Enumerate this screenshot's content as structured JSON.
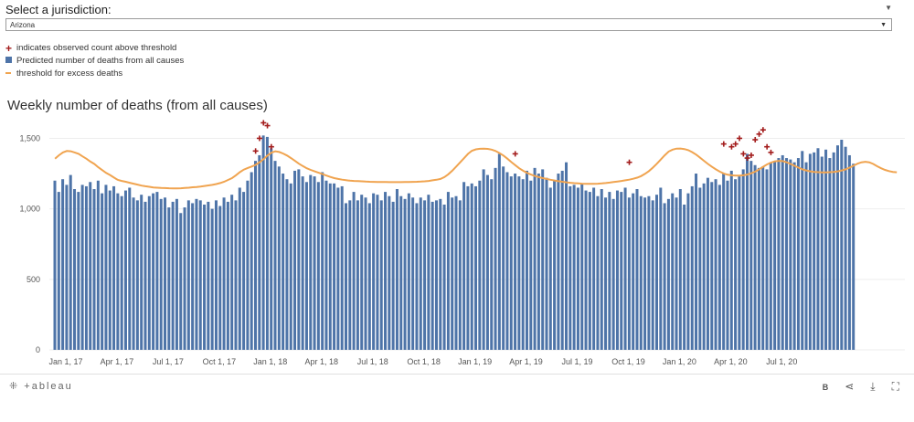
{
  "filter": {
    "label": "Select a jurisdiction:",
    "value": "Arizona"
  },
  "legend": [
    {
      "symbol": "+",
      "label": "indicates observed count above threshold"
    },
    {
      "symbol": "bar",
      "label": "Predicted number of deaths from all causes"
    },
    {
      "symbol": "line",
      "label": "threshold for excess deaths"
    }
  ],
  "chart_data": {
    "type": "bar",
    "title": "Weekly number of deaths (from all causes)",
    "xlabel": "",
    "ylabel": "",
    "ylim": [
      0,
      1600
    ],
    "yticks": [
      0,
      500,
      1000,
      1500
    ],
    "ytick_labels": [
      "0",
      "500",
      "1,000",
      "1,500"
    ],
    "xtick_labels": [
      "Jan 1, 17",
      "Apr 1, 17",
      "Jul 1, 17",
      "Oct 1, 17",
      "Jan 1, 18",
      "Apr 1, 18",
      "Jul 1, 18",
      "Oct 1, 18",
      "Jan 1, 19",
      "Apr 1, 19",
      "Jul 1, 19",
      "Oct 1, 19",
      "Jan 1, 20",
      "Apr 1, 20",
      "Jul 1, 20"
    ],
    "xtick_weeks": [
      0,
      13,
      26,
      39,
      52,
      65,
      78,
      91,
      104,
      117,
      130,
      143,
      156,
      169,
      182
    ],
    "colors": {
      "bar": "#4e74a8",
      "threshold": "#f0a450",
      "marker": "#a31c1c"
    },
    "predicted": [
      1200,
      1120,
      1210,
      1170,
      1240,
      1140,
      1120,
      1170,
      1160,
      1190,
      1140,
      1200,
      1110,
      1170,
      1130,
      1160,
      1110,
      1090,
      1130,
      1150,
      1080,
      1060,
      1100,
      1050,
      1090,
      1110,
      1120,
      1070,
      1080,
      1010,
      1050,
      1070,
      970,
      1010,
      1060,
      1040,
      1070,
      1060,
      1030,
      1050,
      1000,
      1060,
      1020,
      1080,
      1050,
      1100,
      1060,
      1150,
      1120,
      1200,
      1260,
      1340,
      1380,
      1520,
      1510,
      1430,
      1340,
      1300,
      1250,
      1210,
      1180,
      1270,
      1280,
      1230,
      1190,
      1240,
      1230,
      1190,
      1260,
      1200,
      1180,
      1180,
      1150,
      1160,
      1040,
      1060,
      1120,
      1060,
      1100,
      1080,
      1040,
      1110,
      1100,
      1060,
      1120,
      1090,
      1050,
      1140,
      1090,
      1070,
      1110,
      1080,
      1040,
      1080,
      1060,
      1100,
      1050,
      1060,
      1070,
      1030,
      1120,
      1080,
      1090,
      1060,
      1190,
      1160,
      1180,
      1160,
      1200,
      1280,
      1240,
      1210,
      1290,
      1390,
      1300,
      1260,
      1230,
      1250,
      1230,
      1210,
      1270,
      1200,
      1290,
      1250,
      1280,
      1220,
      1150,
      1200,
      1250,
      1270,
      1330,
      1160,
      1170,
      1150,
      1180,
      1130,
      1120,
      1150,
      1090,
      1140,
      1080,
      1120,
      1070,
      1130,
      1120,
      1150,
      1080,
      1110,
      1140,
      1090,
      1080,
      1090,
      1060,
      1100,
      1150,
      1040,
      1070,
      1110,
      1080,
      1140,
      1030,
      1110,
      1160,
      1250,
      1150,
      1180,
      1220,
      1190,
      1210,
      1170,
      1250,
      1200,
      1270,
      1210,
      1230,
      1280,
      1390,
      1340,
      1310,
      1290,
      1300,
      1280,
      1330,
      1340,
      1360,
      1380,
      1360,
      1350,
      1330,
      1360,
      1410,
      1330,
      1390,
      1400,
      1430,
      1370,
      1420,
      1360,
      1400,
      1450,
      1490,
      1440,
      1380,
      1320
    ],
    "threshold": [
      1355,
      1380,
      1400,
      1410,
      1408,
      1400,
      1390,
      1372,
      1355,
      1335,
      1318,
      1295,
      1275,
      1255,
      1240,
      1222,
      1205,
      1198,
      1192,
      1185,
      1178,
      1172,
      1165,
      1160,
      1156,
      1152,
      1150,
      1148,
      1147,
      1146,
      1145,
      1145,
      1146,
      1148,
      1150,
      1153,
      1155,
      1158,
      1162,
      1166,
      1170,
      1176,
      1183,
      1192,
      1205,
      1218,
      1238,
      1260,
      1278,
      1290,
      1300,
      1312,
      1330,
      1352,
      1378,
      1398,
      1408,
      1403,
      1392,
      1378,
      1360,
      1340,
      1320,
      1303,
      1288,
      1276,
      1266,
      1256,
      1246,
      1236,
      1226,
      1218,
      1212,
      1207,
      1203,
      1200,
      1198,
      1197,
      1195,
      1193,
      1192,
      1191,
      1190,
      1190,
      1190,
      1189,
      1189,
      1189,
      1189,
      1190,
      1190,
      1191,
      1192,
      1193,
      1195,
      1198,
      1202,
      1206,
      1212,
      1225,
      1245,
      1270,
      1300,
      1330,
      1360,
      1390,
      1412,
      1422,
      1426,
      1427,
      1425,
      1420,
      1410,
      1395,
      1378,
      1356,
      1332,
      1310,
      1288,
      1270,
      1255,
      1243,
      1233,
      1225,
      1218,
      1212,
      1206,
      1201,
      1196,
      1192,
      1188,
      1185,
      1182,
      1180,
      1178,
      1177,
      1177,
      1177,
      1178,
      1180,
      1183,
      1186,
      1190,
      1194,
      1198,
      1202,
      1207,
      1213,
      1221,
      1232,
      1248,
      1268,
      1292,
      1320,
      1350,
      1380,
      1406,
      1420,
      1427,
      1428,
      1424,
      1416,
      1402,
      1384,
      1362,
      1340,
      1318,
      1298,
      1280,
      1264,
      1251,
      1242,
      1238,
      1236,
      1236,
      1238,
      1243,
      1252,
      1264,
      1280,
      1298,
      1315,
      1328,
      1337,
      1340,
      1338,
      1330,
      1318,
      1305,
      1292,
      1280,
      1272,
      1266,
      1262,
      1260,
      1258,
      1258,
      1260,
      1262,
      1266,
      1272,
      1280,
      1292,
      1306,
      1320,
      1330,
      1334,
      1330,
      1318,
      1302,
      1288,
      1276,
      1268,
      1262,
      1259
    ],
    "observed_above": [
      {
        "week": 51,
        "value": 1410
      },
      {
        "week": 52,
        "value": 1500
      },
      {
        "week": 53,
        "value": 1610
      },
      {
        "week": 54,
        "value": 1590
      },
      {
        "week": 55,
        "value": 1440
      },
      {
        "week": 117,
        "value": 1390
      },
      {
        "week": 146,
        "value": 1330
      },
      {
        "week": 170,
        "value": 1460
      },
      {
        "week": 172,
        "value": 1440
      },
      {
        "week": 173,
        "value": 1460
      },
      {
        "week": 174,
        "value": 1500
      },
      {
        "week": 175,
        "value": 1390
      },
      {
        "week": 176,
        "value": 1360
      },
      {
        "week": 177,
        "value": 1380
      },
      {
        "week": 178,
        "value": 1490
      },
      {
        "week": 179,
        "value": 1530
      },
      {
        "week": 180,
        "value": 1560
      },
      {
        "week": 181,
        "value": 1440
      },
      {
        "week": 182,
        "value": 1400
      }
    ]
  },
  "footer": {
    "logo": "+ableau",
    "icons": [
      "b-icon",
      "share-icon",
      "download-icon",
      "fullscreen-icon"
    ],
    "b_label": "B"
  }
}
